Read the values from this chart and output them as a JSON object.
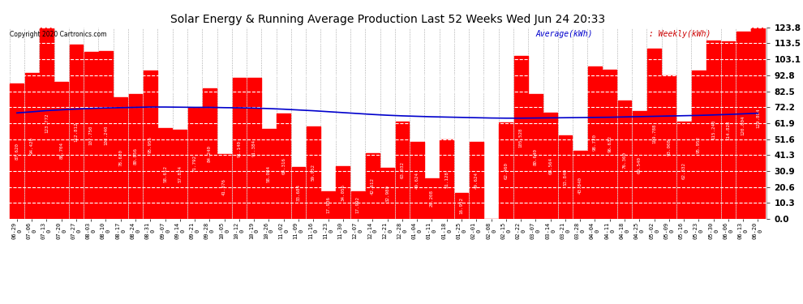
{
  "title": "Solar Energy & Running Average Production Last 52 Weeks Wed Jun 24 20:33",
  "copyright": "Copyright 2020 Cartronics.com",
  "legend_avg": "Average(kWh)",
  "legend_weekly": "Weekly(kWh)",
  "bar_color": "#FF0000",
  "avg_line_color": "#0000CC",
  "background_color": "#FFFFFF",
  "ylabel_right_values": [
    0.0,
    10.3,
    20.6,
    30.9,
    41.3,
    51.6,
    61.9,
    72.2,
    82.5,
    92.8,
    103.1,
    113.5,
    123.8
  ],
  "ylim": [
    0,
    123.8
  ],
  "grid_color": "#AAAAAA",
  "dates": [
    "06-29",
    "07-06",
    "07-13",
    "07-20",
    "07-27",
    "08-03",
    "08-10",
    "08-17",
    "08-24",
    "08-31",
    "09-07",
    "09-14",
    "09-21",
    "09-28",
    "10-05",
    "10-12",
    "10-19",
    "10-26",
    "11-02",
    "11-09",
    "11-16",
    "11-23",
    "11-30",
    "12-07",
    "12-14",
    "12-21",
    "12-28",
    "01-04",
    "01-11",
    "01-18",
    "01-25",
    "02-01",
    "02-08",
    "02-15",
    "02-22",
    "03-07",
    "03-14",
    "03-21",
    "03-28",
    "04-04",
    "04-11",
    "04-18",
    "04-25",
    "05-02",
    "05-09",
    "05-16",
    "05-23",
    "05-30",
    "06-06",
    "06-13",
    "06-20"
  ],
  "years": [
    "0",
    "0",
    "0",
    "0",
    "0",
    "0",
    "0",
    "0",
    "0",
    "0",
    "0",
    "0",
    "0",
    "0",
    "0",
    "0",
    "0",
    "0",
    "0",
    "0",
    "0",
    "0",
    "0",
    "0",
    "0",
    "0",
    "0",
    "0",
    "0",
    "0",
    "0",
    "0",
    "0",
    "0",
    "0",
    "0",
    "0",
    "0",
    "0",
    "0",
    "0",
    "0",
    "0",
    "0",
    "0",
    "0",
    "0",
    "0",
    "0",
    "0",
    "0"
  ],
  "weekly_values": [
    87.62,
    94.42,
    123.772,
    88.704,
    112.812,
    107.75,
    108.24,
    78.62,
    80.856,
    95.956,
    58.612,
    57.824,
    71.792,
    84.24,
    41.876,
    91.14,
    91.384,
    58.084,
    68.316,
    33.684,
    59.952,
    17.936,
    34.056,
    17.992,
    42.612,
    32.98,
    63.032,
    49.624,
    26.208,
    51.128,
    16.952,
    49.624,
    0.096,
    62.46,
    105.528,
    80.64,
    68.564,
    53.84,
    43.84,
    98.72,
    96.632,
    76.36,
    69.54,
    109.788,
    93.008,
    62.832,
    95.952,
    115.24,
    114.828,
    120.804,
    129.804
  ],
  "avg_values": [
    68.5,
    69.2,
    70.0,
    70.5,
    71.0,
    71.4,
    71.7,
    71.9,
    72.1,
    72.3,
    72.3,
    72.2,
    72.1,
    72.1,
    71.9,
    71.8,
    71.6,
    71.3,
    70.9,
    70.4,
    69.9,
    69.3,
    68.7,
    68.1,
    67.5,
    67.0,
    66.6,
    66.3,
    66.0,
    65.8,
    65.6,
    65.4,
    65.2,
    65.1,
    65.1,
    65.2,
    65.3,
    65.4,
    65.5,
    65.6,
    65.7,
    65.9,
    66.1,
    66.3,
    66.5,
    66.7,
    66.9,
    67.2,
    67.5,
    67.9,
    68.3
  ]
}
